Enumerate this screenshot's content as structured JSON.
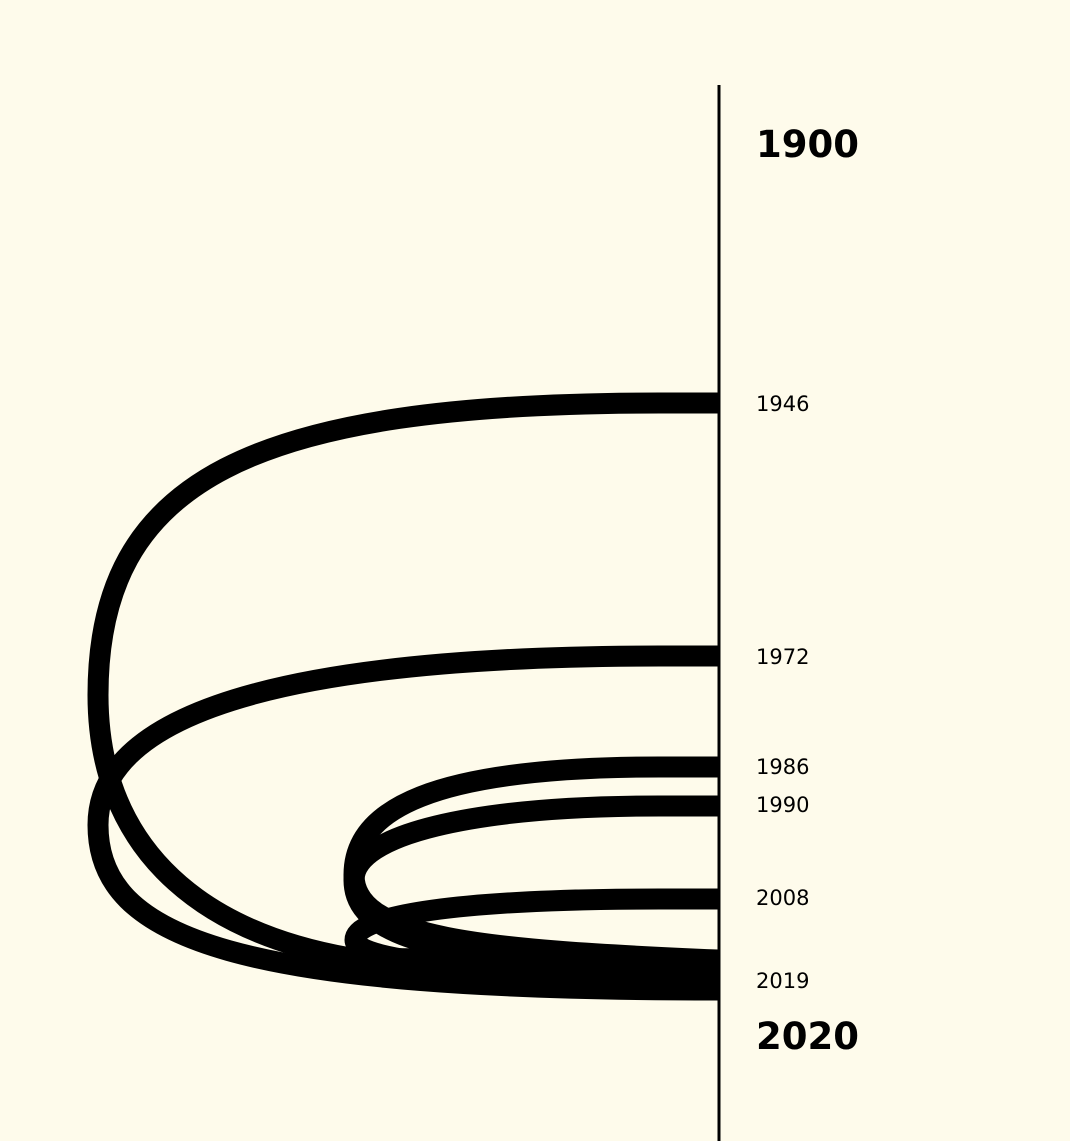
{
  "axis": {
    "start_label": "1900",
    "end_label": "2020"
  },
  "timeline": {
    "years": [
      {
        "label": "1946"
      },
      {
        "label": "1972"
      },
      {
        "label": "1986"
      },
      {
        "label": "1990"
      },
      {
        "label": "2008"
      },
      {
        "label": "2019"
      }
    ]
  },
  "colors": {
    "background": "#fefbeb",
    "ink": "#000000"
  }
}
